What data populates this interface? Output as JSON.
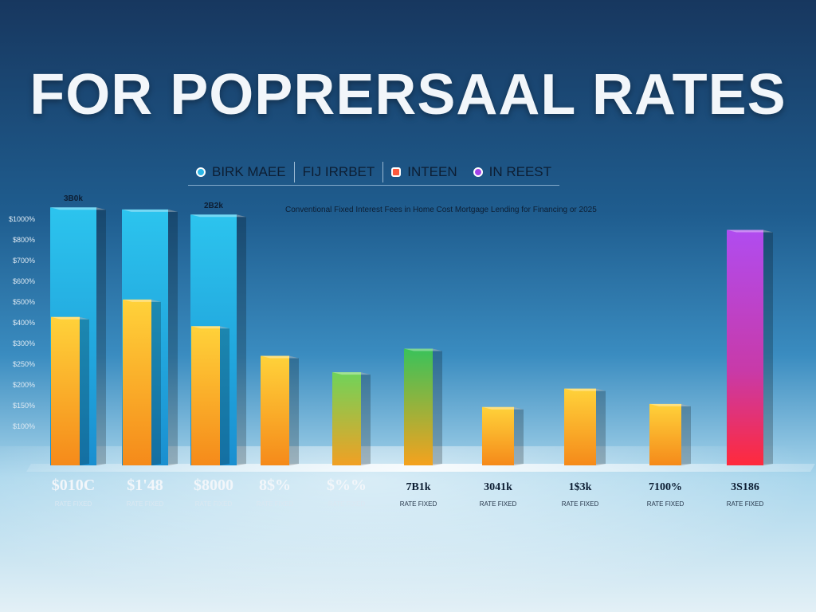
{
  "chart_data": {
    "type": "bar",
    "title": "FOR POPRERSAAL RATES",
    "subtitle": "Conventional Fixed Interest Fees in Home Cost Mortgage Lending for Financing or 2025",
    "legend": [
      {
        "label": "BIRK MAEE",
        "color": "#2bb6e6",
        "marker": "dot"
      },
      {
        "label": "FIJ IRRBET",
        "color": "",
        "marker": "none"
      },
      {
        "label": "INTEEN",
        "color": "#ff5a3d",
        "marker": "square"
      },
      {
        "label": "IN REEST",
        "color": "#a442e8",
        "marker": "dot"
      }
    ],
    "y_ticks": [
      "$1000%",
      "$800%",
      "$700%",
      "$600%",
      "$500%",
      "$400%",
      "$300%",
      "$250%",
      "$200%",
      "$150%",
      "$100%"
    ],
    "categories": [
      "$010C",
      "$1'48",
      "$8000",
      "8$%",
      "$%%",
      "7B1k",
      "3041k",
      "1$3k",
      "7100%",
      "3S186"
    ],
    "category_sublabels": [
      "RATE FIXED",
      "RATE FIXED",
      "RATE FIXED",
      "RATE FIXED",
      "RATE FIXED",
      "RATE FIXED",
      "RATE FIXED",
      "RATE FIXED",
      "RATE FIXED",
      "RATE FIXED"
    ],
    "top_labels": [
      "3B0k",
      "",
      "2B2k",
      "",
      "",
      "",
      "",
      "",
      "",
      ""
    ],
    "series": [
      {
        "name": "BIRK MAEE",
        "color": "#29b4e6",
        "values": [
          1260,
          1250,
          1225,
          null,
          null,
          null,
          null,
          null,
          null,
          null
        ]
      },
      {
        "name": "INTEEN",
        "color": "#f7a21c",
        "values": [
          725,
          810,
          680,
          535,
          455,
          570,
          285,
          375,
          300,
          1150
        ]
      }
    ],
    "ylim": [
      0,
      1300
    ],
    "xlabel": "",
    "ylabel": "",
    "grid": false,
    "legend_placement": "top"
  }
}
